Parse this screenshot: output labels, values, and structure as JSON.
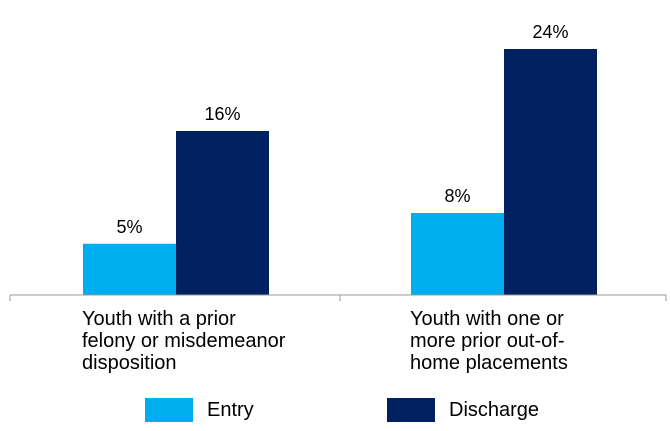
{
  "chart_data": {
    "type": "bar",
    "categories": [
      "Youth with a prior\nfelony or misdemeanor\ndisposition",
      "Youth with one or\nmore prior out-of-\nhome placements"
    ],
    "series": [
      {
        "name": "Entry",
        "values": [
          5,
          8
        ],
        "labels": [
          "5%",
          "8%"
        ],
        "color": "#00AEEF"
      },
      {
        "name": "Discharge",
        "values": [
          16,
          24
        ],
        "labels": [
          "16%",
          "24%"
        ],
        "color": "#002060"
      }
    ],
    "ylim": [
      0,
      25
    ],
    "grid": false,
    "legend_position": "bottom"
  }
}
